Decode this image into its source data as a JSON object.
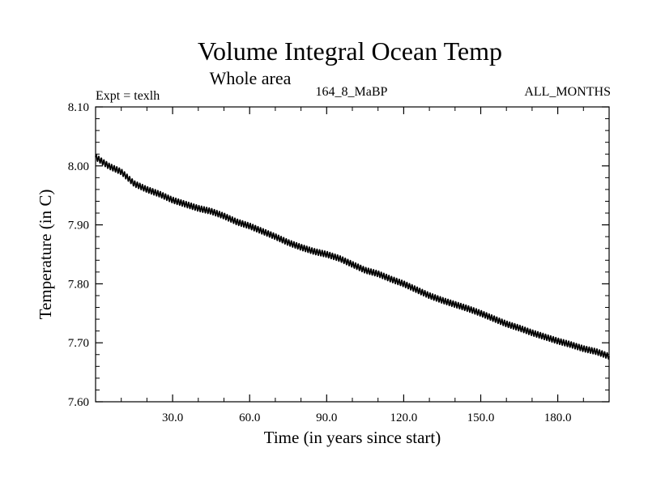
{
  "chart_data": {
    "type": "line",
    "title": "Volume Integral Ocean Temp",
    "subtitle": "Whole area",
    "annotations": {
      "left": "Expt = texlh",
      "center": "164_8_MaBP",
      "right": "ALL_MONTHS"
    },
    "xlabel": "Time (in years since start)",
    "ylabel": "Temperature (in C)",
    "xlim": [
      0,
      200
    ],
    "ylim": [
      7.6,
      8.1
    ],
    "xticks": [
      30,
      60,
      90,
      120,
      150,
      180
    ],
    "xtick_labels": [
      "30.0",
      "60.0",
      "90.0",
      "120.0",
      "150.0",
      "180.0"
    ],
    "yticks": [
      7.6,
      7.7,
      7.8,
      7.9,
      8.0,
      8.1
    ],
    "ytick_labels": [
      "7.60",
      "7.70",
      "7.80",
      "7.90",
      "8.00",
      "8.10"
    ],
    "series": [
      {
        "name": "Volume Integral Ocean Temp",
        "x": [
          0,
          5,
          10,
          15,
          20,
          25,
          30,
          35,
          40,
          45,
          50,
          55,
          60,
          65,
          70,
          75,
          80,
          85,
          90,
          95,
          100,
          105,
          110,
          115,
          120,
          125,
          130,
          135,
          140,
          145,
          150,
          155,
          160,
          165,
          170,
          175,
          180,
          185,
          190,
          195,
          200
        ],
        "values": [
          8.015,
          8.0,
          7.99,
          7.97,
          7.96,
          7.952,
          7.942,
          7.935,
          7.928,
          7.923,
          7.915,
          7.905,
          7.898,
          7.889,
          7.88,
          7.87,
          7.862,
          7.855,
          7.85,
          7.843,
          7.833,
          7.823,
          7.817,
          7.808,
          7.8,
          7.79,
          7.78,
          7.772,
          7.765,
          7.758,
          7.75,
          7.741,
          7.732,
          7.725,
          7.717,
          7.71,
          7.703,
          7.697,
          7.69,
          7.685,
          7.677
        ],
        "seasonal_amplitude": 0.005
      }
    ]
  }
}
